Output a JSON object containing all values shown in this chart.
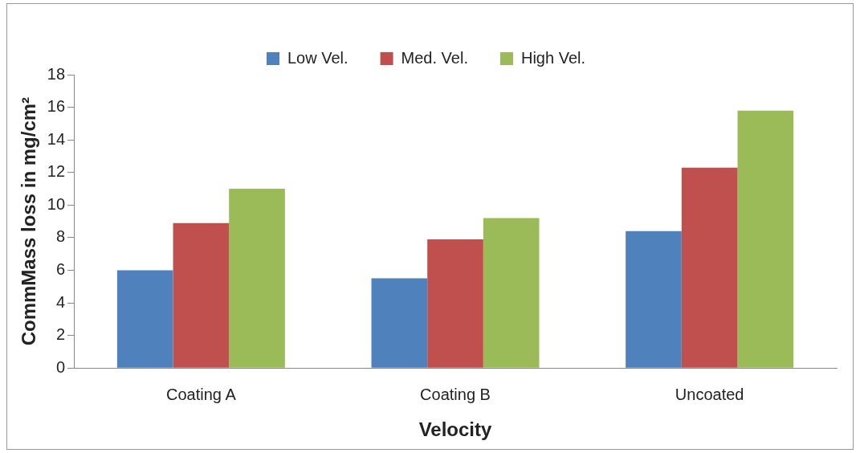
{
  "chart_data": {
    "type": "bar",
    "xlabel": "Velocity",
    "ylabel": "CommMass loss in mg/cm²",
    "categories": [
      "Coating A",
      "Coating B",
      "Uncoated"
    ],
    "series": [
      {
        "name": "Low Vel.",
        "color": "#4f81bd",
        "values": [
          6.0,
          5.5,
          8.4
        ]
      },
      {
        "name": "Med. Vel.",
        "color": "#c0504d",
        "values": [
          8.9,
          7.9,
          12.3
        ]
      },
      {
        "name": "High Vel.",
        "color": "#9bbb59",
        "values": [
          11.0,
          9.2,
          15.8
        ]
      }
    ],
    "ylim": [
      0,
      18
    ],
    "yticks": [
      0,
      2,
      4,
      6,
      8,
      10,
      12,
      14,
      16,
      18
    ],
    "grid": false,
    "legend": "top"
  }
}
